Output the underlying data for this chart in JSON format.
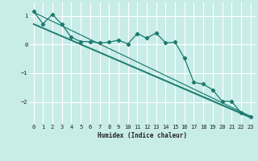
{
  "xlabel": "Humidex (Indice chaleur)",
  "background_color": "#c8ece8",
  "grid_color": "#ffffff",
  "line_color": "#1a7a6e",
  "xlim": [
    -0.5,
    23.5
  ],
  "ylim": [
    -2.75,
    1.45
  ],
  "yticks": [
    -2,
    -1,
    0,
    1
  ],
  "xticks": [
    0,
    1,
    2,
    3,
    4,
    5,
    6,
    7,
    8,
    9,
    10,
    11,
    12,
    13,
    14,
    15,
    16,
    17,
    18,
    19,
    20,
    21,
    22,
    23
  ],
  "wiggly": [
    1.15,
    0.72,
    1.05,
    0.7,
    0.25,
    0.1,
    0.1,
    0.05,
    0.08,
    0.15,
    0.02,
    0.38,
    0.22,
    0.4,
    0.05,
    0.08,
    -0.48,
    -1.32,
    -1.38,
    -1.58,
    -1.98,
    -1.98,
    -2.38,
    -2.52
  ],
  "line1_ends": [
    1.12,
    -2.5
  ],
  "line2_ends": [
    0.72,
    -2.52
  ],
  "line3_ends": [
    0.7,
    -2.55
  ]
}
